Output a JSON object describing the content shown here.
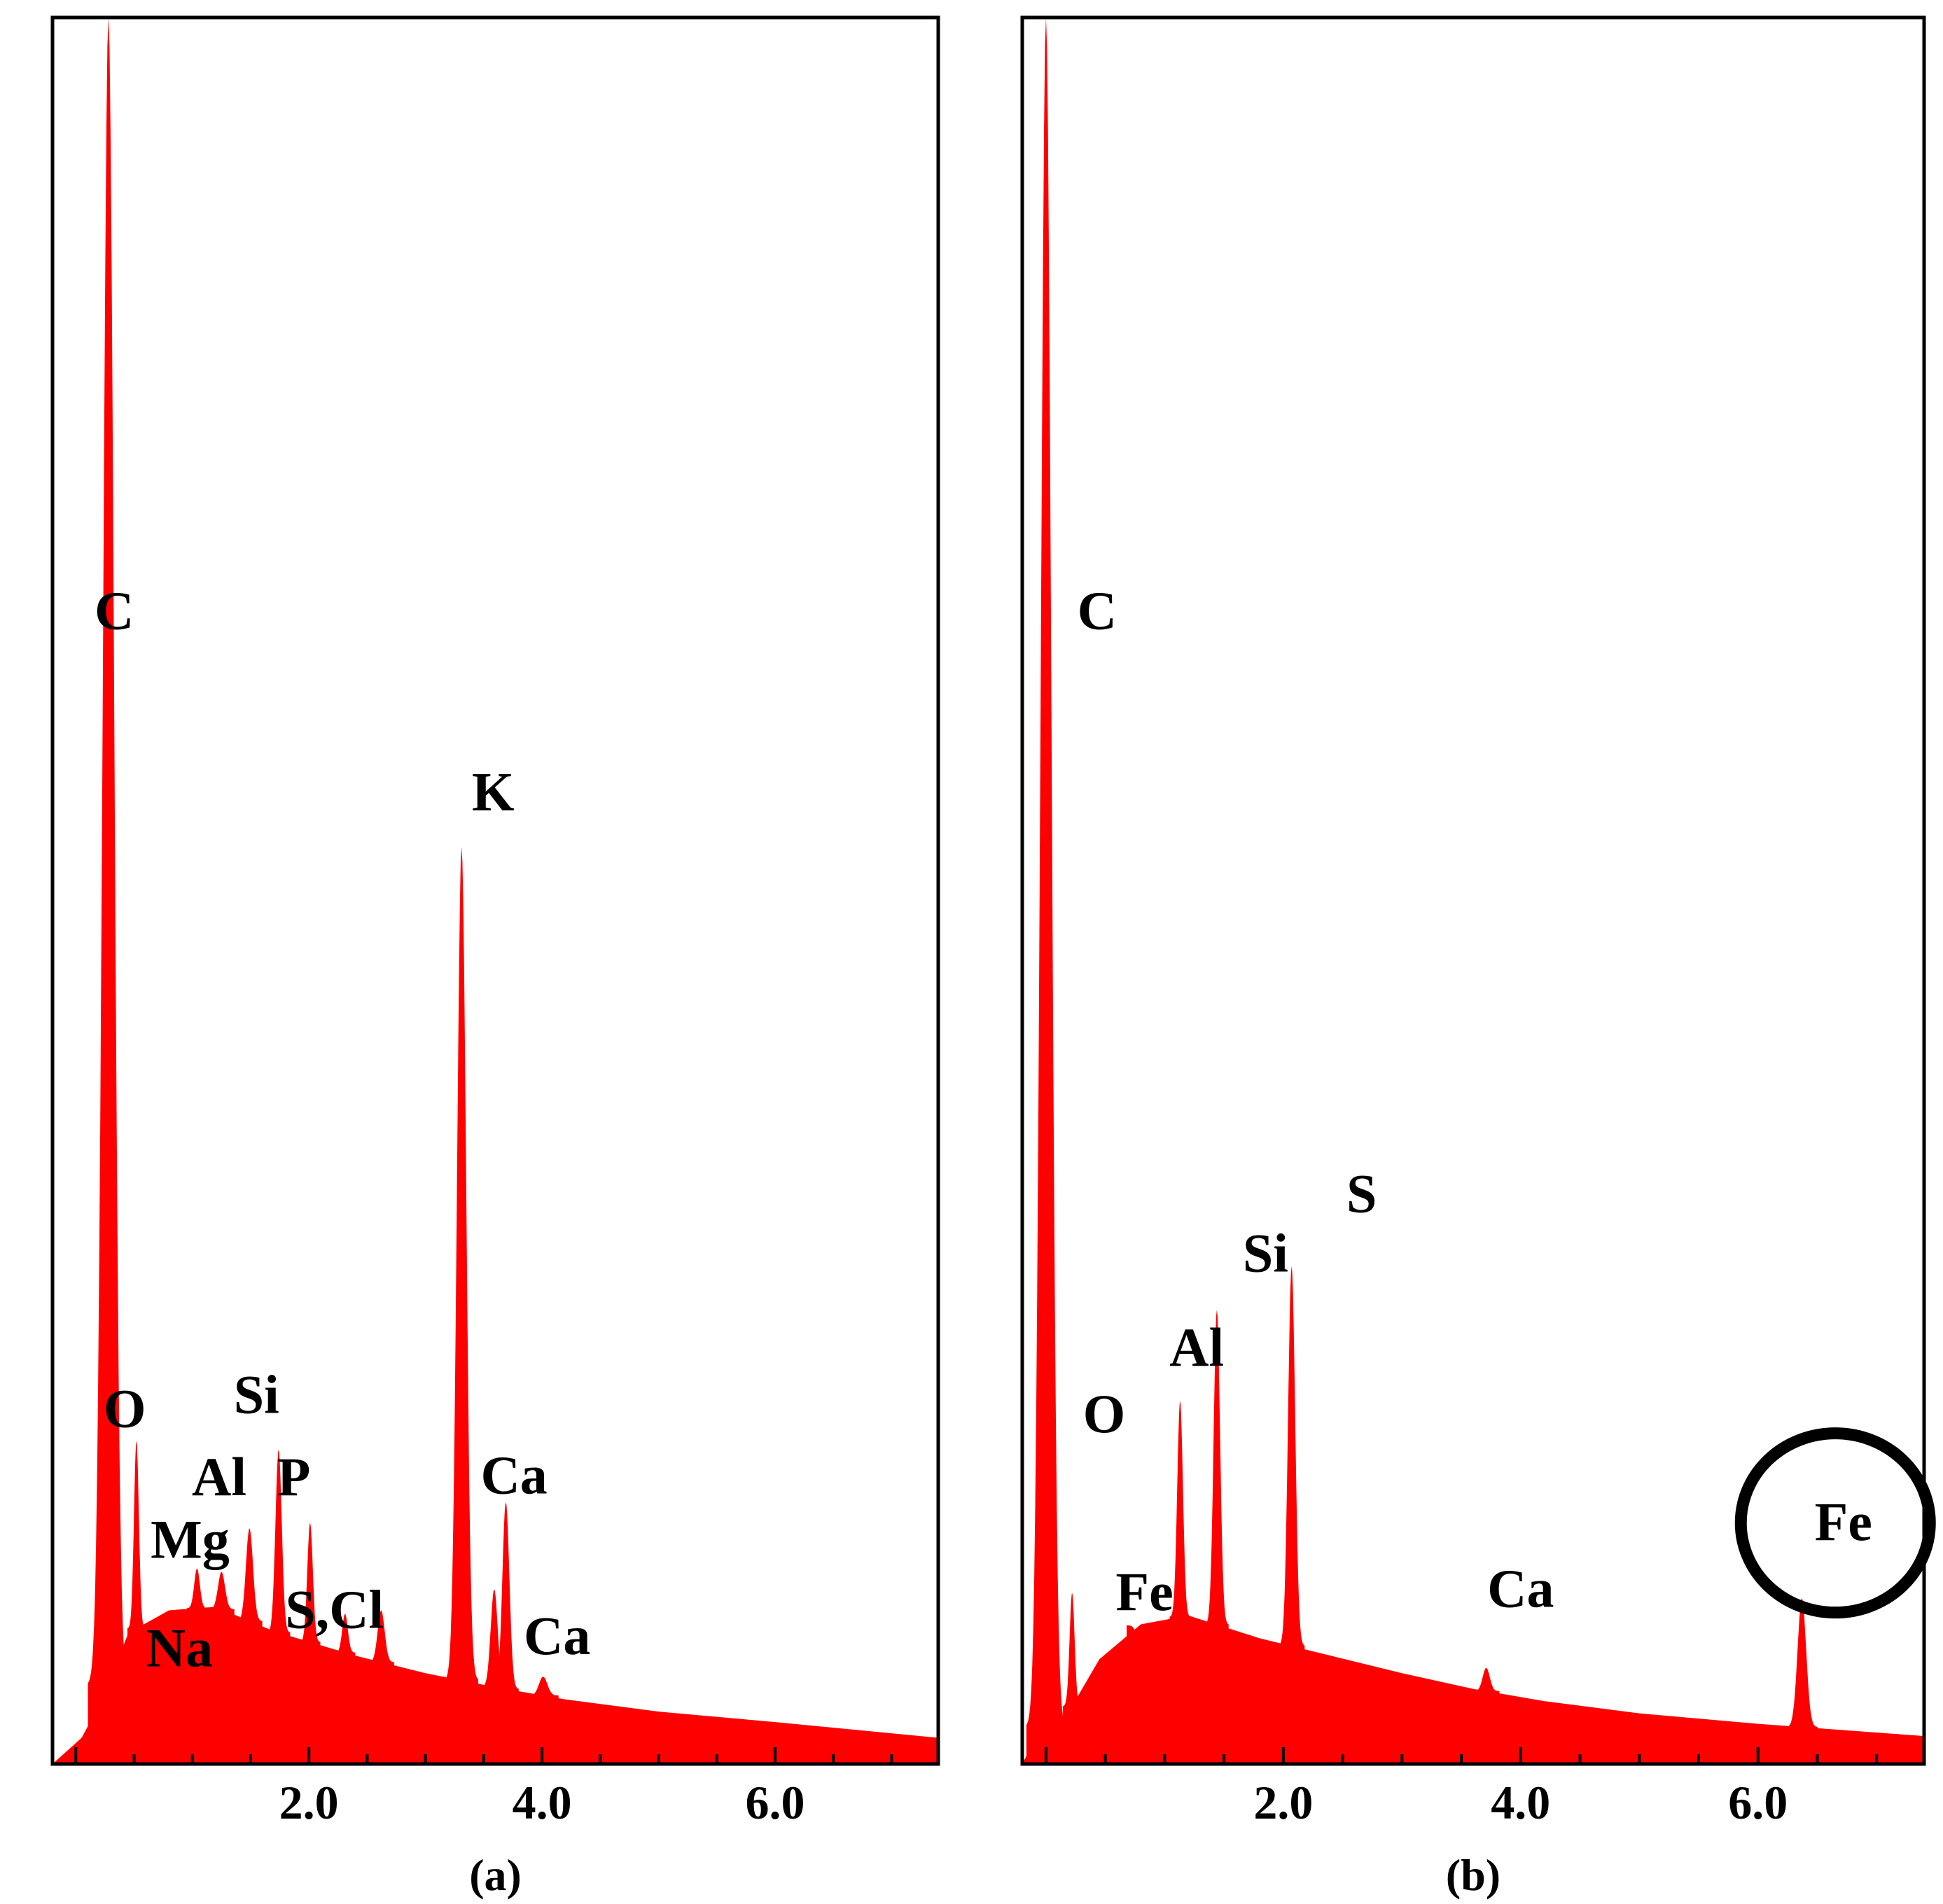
{
  "colors": {
    "spectrum": "#ff0000",
    "frame": "#000000",
    "highlight_ring": "#000000"
  },
  "chart_data": [
    {
      "type": "area",
      "caption": "(a)",
      "xlim": [
        -0.2,
        7.4
      ],
      "ylim": [
        0,
        100
      ],
      "x_ticks": [
        2.0,
        4.0,
        6.0
      ],
      "x_tick_labels": [
        "2.0",
        "4.0",
        "6.0"
      ],
      "baseline_points": [
        [
          -0.2,
          0
        ],
        [
          0.05,
          1.5
        ],
        [
          0.25,
          4
        ],
        [
          0.45,
          7.5
        ],
        [
          0.8,
          8.8
        ],
        [
          1.2,
          9
        ],
        [
          1.7,
          7.6
        ],
        [
          2.4,
          6.2
        ],
        [
          3.0,
          5.2
        ],
        [
          3.6,
          4.4
        ],
        [
          4.2,
          3.7
        ],
        [
          5.0,
          3
        ],
        [
          6.0,
          2.4
        ],
        [
          7.4,
          1.5
        ]
      ],
      "peaks": [
        {
          "element": "C",
          "x": 0.28,
          "y": 100,
          "width": 0.08
        },
        {
          "element": "O",
          "x": 0.52,
          "y": 18.5,
          "width": 0.035
        },
        {
          "element": "Na",
          "x": 1.04,
          "y": 11.2,
          "width": 0.04
        },
        {
          "element": "Mg",
          "x": 1.25,
          "y": 11.0,
          "width": 0.05
        },
        {
          "element": "Al",
          "x": 1.49,
          "y": 13.5,
          "width": 0.05
        },
        {
          "element": "Si",
          "x": 1.74,
          "y": 18.0,
          "width": 0.045
        },
        {
          "element": "P",
          "x": 2.01,
          "y": 13.8,
          "width": 0.04
        },
        {
          "element": "S",
          "x": 2.31,
          "y": 8.6,
          "width": 0.04
        },
        {
          "element": "Cl",
          "x": 2.62,
          "y": 8.8,
          "width": 0.05
        },
        {
          "element": "K",
          "x": 3.31,
          "y": 52.5,
          "width": 0.065
        },
        {
          "element": "K",
          "x": 3.59,
          "y": 10.0,
          "width": 0.05
        },
        {
          "element": "Ca",
          "x": 3.69,
          "y": 15.0,
          "width": 0.05
        },
        {
          "element": "Ca",
          "x": 4.01,
          "y": 5.0,
          "width": 0.06
        }
      ],
      "labels": [
        {
          "text": "C",
          "x": 0.33,
          "y": 65
        },
        {
          "text": "O",
          "x": 0.42,
          "y": 19.3
        },
        {
          "text": "Si",
          "x": 1.55,
          "y": 20.1
        },
        {
          "text": "Al",
          "x": 1.23,
          "y": 15.4
        },
        {
          "text": "P",
          "x": 1.87,
          "y": 15.4
        },
        {
          "text": "Mg",
          "x": 0.98,
          "y": 11.8
        },
        {
          "text": "Na",
          "x": 0.89,
          "y": 5.6
        },
        {
          "text": "S,Cl",
          "x": 2.22,
          "y": 7.8
        },
        {
          "text": "K",
          "x": 3.58,
          "y": 54.6
        },
        {
          "text": "Ca",
          "x": 3.76,
          "y": 15.5
        },
        {
          "text": "Ca",
          "x": 4.13,
          "y": 6.3
        }
      ]
    },
    {
      "type": "area",
      "caption": "(b)",
      "xlim": [
        -0.2,
        7.4
      ],
      "ylim": [
        0,
        100
      ],
      "x_ticks": [
        2.0,
        4.0,
        6.0
      ],
      "x_tick_labels": [
        "2.0",
        "4.0",
        "6.0"
      ],
      "baseline_points": [
        [
          -0.2,
          0
        ],
        [
          -0.05,
          2
        ],
        [
          0.15,
          2.5
        ],
        [
          0.45,
          6
        ],
        [
          0.8,
          8
        ],
        [
          1.2,
          8.5
        ],
        [
          1.8,
          7.2
        ],
        [
          2.4,
          6.2
        ],
        [
          3.0,
          5.2
        ],
        [
          3.6,
          4.3
        ],
        [
          4.2,
          3.6
        ],
        [
          5.0,
          2.9
        ],
        [
          6.0,
          2.3
        ],
        [
          7.4,
          1.6
        ]
      ],
      "peaks": [
        {
          "element": "C",
          "x": 0.0,
          "y": 100,
          "width": 0.075
        },
        {
          "element": "O",
          "x": 0.22,
          "y": 9.8,
          "width": 0.035
        },
        {
          "element": "Fe",
          "x": 0.79,
          "y": 7.2,
          "width": 0.05
        },
        {
          "element": "Al",
          "x": 1.13,
          "y": 20.8,
          "width": 0.04
        },
        {
          "element": "Si",
          "x": 1.44,
          "y": 26.0,
          "width": 0.045
        },
        {
          "element": "S",
          "x": 2.07,
          "y": 28.5,
          "width": 0.05
        },
        {
          "element": "Ca",
          "x": 3.71,
          "y": 5.5,
          "width": 0.05
        },
        {
          "element": "Fe",
          "x": 6.37,
          "y": 9.5,
          "width": 0.06
        }
      ],
      "labels": [
        {
          "text": "C",
          "x": 0.43,
          "y": 65
        },
        {
          "text": "O",
          "x": 0.49,
          "y": 19.0
        },
        {
          "text": "Al",
          "x": 1.27,
          "y": 22.8
        },
        {
          "text": "Si",
          "x": 1.85,
          "y": 28.2
        },
        {
          "text": "S",
          "x": 2.66,
          "y": 31.6
        },
        {
          "text": "Fe",
          "x": 0.83,
          "y": 8.8
        },
        {
          "text": "Ca",
          "x": 4.0,
          "y": 9.0
        },
        {
          "text": "Fe",
          "x": 6.72,
          "y": 12.8
        }
      ],
      "highlight": {
        "element": "Fe",
        "x": 6.77,
        "y": 12.8
      }
    }
  ]
}
